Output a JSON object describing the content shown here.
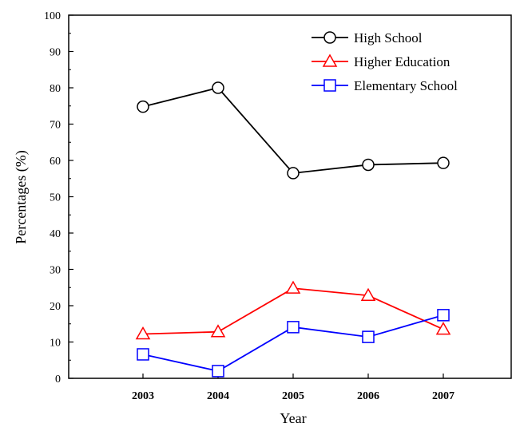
{
  "chart_data": {
    "type": "line",
    "title": "",
    "xlabel": "Year",
    "ylabel": "Percentages (%)",
    "categories": [
      "2003",
      "2004",
      "2005",
      "2006",
      "2007"
    ],
    "ylim": [
      0,
      100
    ],
    "yticks": [
      0,
      10,
      20,
      30,
      40,
      50,
      60,
      70,
      80,
      90,
      100
    ],
    "grid": false,
    "legend_position": "top-right",
    "series": [
      {
        "name": "High School",
        "color": "#000000",
        "marker": "circle",
        "values": [
          74.8,
          80.0,
          56.5,
          58.8,
          59.3
        ]
      },
      {
        "name": "Higher Education",
        "color": "#ff0000",
        "marker": "triangle",
        "values": [
          12.2,
          12.8,
          24.8,
          22.8,
          13.5
        ]
      },
      {
        "name": "Elementary School",
        "color": "#0000ff",
        "marker": "square",
        "values": [
          6.6,
          2.0,
          14.1,
          11.4,
          17.4
        ]
      }
    ]
  }
}
